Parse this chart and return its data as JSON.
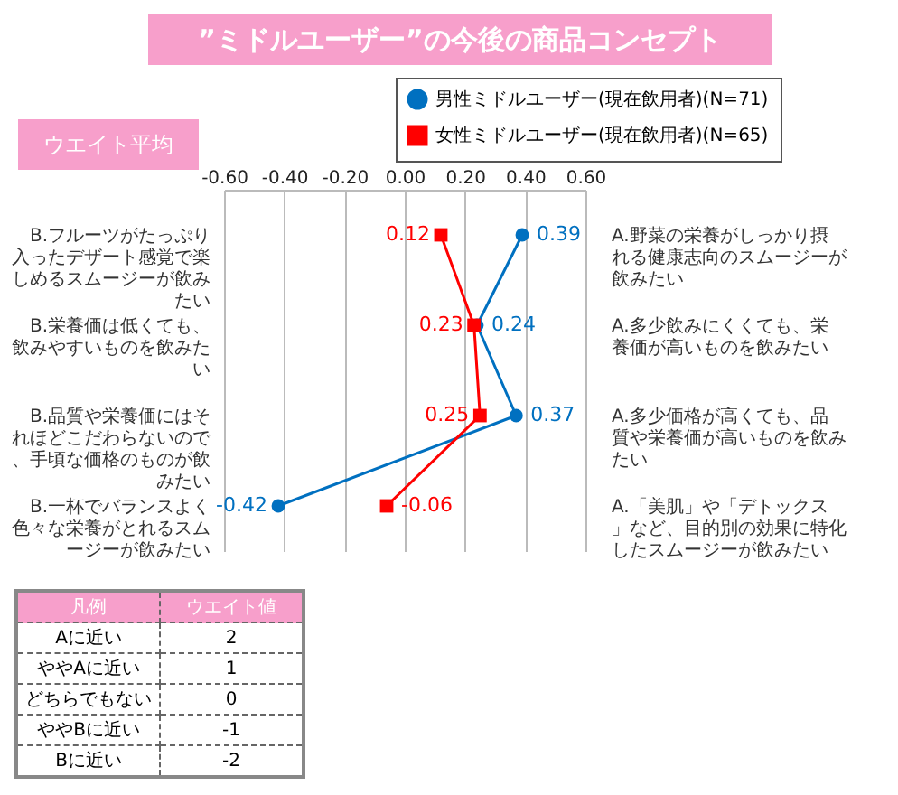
{
  "chart_data": {
    "type": "line",
    "orientation": "horizontal",
    "title": "”ミドルユーザー”の今後の商品コンセプト",
    "categories": [
      "B.フルーツがたっぷり入ったデザート感覚で楽しめるスムージーが飲みたい",
      "B.栄養価は低くても、飲みやすいものを飲みたい",
      "B.品質や栄養価にはそれほどこだわらないので、手頃な価格のものが飲みたい",
      "B.一杯でバランスよく色々な栄養がとれるスムージーが飲みたい"
    ],
    "y2_categories": [
      "A.野菜の栄養がしっかり摂れる健康志向のスムージーが飲みたい",
      "A.多少飲みにくくても、栄養価が高いものを飲みたい",
      "A.多少価格が高くても、品質や栄養価が高いものを飲みたい",
      "A.「美肌」や「デトックス」など、目的別の効果に特化したスムージーが飲みたい"
    ],
    "series": [
      {
        "name": "男性ミドルユーザー(現在飲用者)(N=71)",
        "color": "#0070c0",
        "marker": "circle",
        "values": [
          0.39,
          0.24,
          0.37,
          -0.42
        ]
      },
      {
        "name": "女性ミドルユーザー(現在飲用者)(N=65)",
        "color": "#ff0000",
        "marker": "square",
        "values": [
          0.12,
          0.23,
          0.25,
          -0.06
        ]
      }
    ],
    "xlim": [
      -0.6,
      0.6
    ],
    "xticks": [
      {
        "value": -0.6,
        "label": "-0.60"
      },
      {
        "value": -0.4,
        "label": "-0.40"
      },
      {
        "value": -0.2,
        "label": "-0.20"
      },
      {
        "value": 0,
        "label": "0.00"
      },
      {
        "value": 0.2,
        "label": "0.20"
      },
      {
        "value": 0.4,
        "label": "0.40"
      },
      {
        "value": 0.6,
        "label": "0.60"
      }
    ],
    "grid": "x",
    "legend": "top right",
    "data_labels": true,
    "annotations": [
      "ウエイト平均",
      "凡例",
      "ウエイト値",
      "Aに近い",
      "2",
      "ややAに近い",
      "1",
      "どちらでもない",
      "0",
      "ややBに近い",
      "-1",
      "Bに近い",
      "-2"
    ]
  }
}
